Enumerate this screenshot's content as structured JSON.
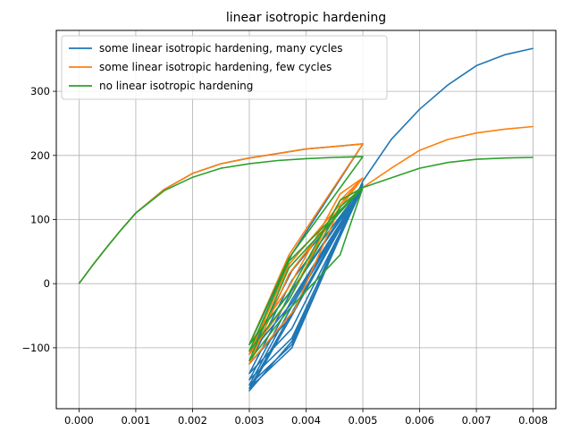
{
  "chart_data": {
    "type": "line",
    "title": "linear isotropic hardening",
    "xlabel": "",
    "ylabel": "",
    "xlim": [
      -0.0004,
      0.0084
    ],
    "ylim": [
      -195,
      395
    ],
    "xticks": [
      0.0,
      0.001,
      0.002,
      0.003,
      0.004,
      0.005,
      0.006,
      0.007,
      0.008
    ],
    "xtick_labels": [
      "0.000",
      "0.001",
      "0.002",
      "0.003",
      "0.004",
      "0.005",
      "0.006",
      "0.007",
      "0.008"
    ],
    "yticks": [
      -100,
      0,
      100,
      200,
      300
    ],
    "ytick_labels": [
      "−100",
      "0",
      "100",
      "200",
      "300"
    ],
    "grid": true,
    "legend_position": "upper-left",
    "series": [
      {
        "name": "some linear isotropic hardening, many cycles",
        "color": "#1f77b4",
        "x": [
          0.0,
          0.00025,
          0.0005,
          0.00075,
          0.001,
          0.0015,
          0.002,
          0.0025,
          0.003,
          0.0035,
          0.004,
          0.0045,
          0.005,
          0.00375,
          0.003,
          0.00375,
          0.005,
          0.00375,
          0.003,
          0.00375,
          0.005,
          0.00375,
          0.003,
          0.00375,
          0.005,
          0.00375,
          0.003,
          0.00375,
          0.005,
          0.00375,
          0.003,
          0.00375,
          0.005,
          0.00375,
          0.003,
          0.00375,
          0.005,
          0.00375,
          0.003,
          0.00375,
          0.005,
          0.00375,
          0.003,
          0.00375,
          0.005,
          0.0055,
          0.006,
          0.0065,
          0.007,
          0.0075,
          0.008
        ],
        "y": [
          0,
          30,
          58,
          85,
          110,
          147,
          172,
          187,
          196,
          203,
          210,
          214,
          218,
          46,
          -95,
          -10,
          155,
          20,
          -110,
          -30,
          152,
          5,
          -125,
          -50,
          150,
          -10,
          -140,
          -70,
          150,
          -25,
          -150,
          -85,
          150,
          -35,
          -158,
          -95,
          152,
          -45,
          -163,
          -100,
          155,
          -50,
          -167,
          -90,
          160,
          225,
          272,
          310,
          340,
          357,
          367
        ]
      },
      {
        "name": "some linear isotropic hardening, few cycles",
        "color": "#ff7f0e",
        "x": [
          0.0,
          0.00025,
          0.0005,
          0.00075,
          0.001,
          0.0015,
          0.002,
          0.0025,
          0.003,
          0.0035,
          0.004,
          0.0045,
          0.005,
          0.0037,
          0.003,
          0.0037,
          0.0046,
          0.005,
          0.0037,
          0.003,
          0.0037,
          0.0046,
          0.005,
          0.0037,
          0.003,
          0.0038,
          0.0046,
          0.005,
          0.0055,
          0.006,
          0.0065,
          0.007,
          0.0075,
          0.008
        ],
        "y": [
          0,
          30,
          58,
          85,
          110,
          147,
          172,
          187,
          196,
          203,
          210,
          214,
          218,
          45,
          -95,
          -5,
          140,
          165,
          30,
          -110,
          -25,
          130,
          165,
          15,
          -125,
          -40,
          120,
          150,
          180,
          208,
          225,
          235,
          241,
          245
        ]
      },
      {
        "name": "no linear isotropic hardening",
        "color": "#2ca02c",
        "x": [
          0.0,
          0.00025,
          0.0005,
          0.00075,
          0.001,
          0.0015,
          0.002,
          0.0025,
          0.003,
          0.0035,
          0.004,
          0.0045,
          0.005,
          0.0037,
          0.003,
          0.0037,
          0.0046,
          0.005,
          0.0037,
          0.003,
          0.0037,
          0.0046,
          0.005,
          0.0037,
          0.003,
          0.0037,
          0.0046,
          0.005,
          0.0055,
          0.006,
          0.0065,
          0.007,
          0.0075,
          0.008
        ],
        "y": [
          0,
          30,
          58,
          85,
          110,
          145,
          166,
          180,
          187,
          192,
          195,
          197,
          198,
          40,
          -95,
          -15,
          130,
          150,
          35,
          -105,
          -25,
          120,
          150,
          25,
          -120,
          -40,
          45,
          150,
          165,
          180,
          189,
          194,
          196,
          197
        ]
      }
    ]
  }
}
